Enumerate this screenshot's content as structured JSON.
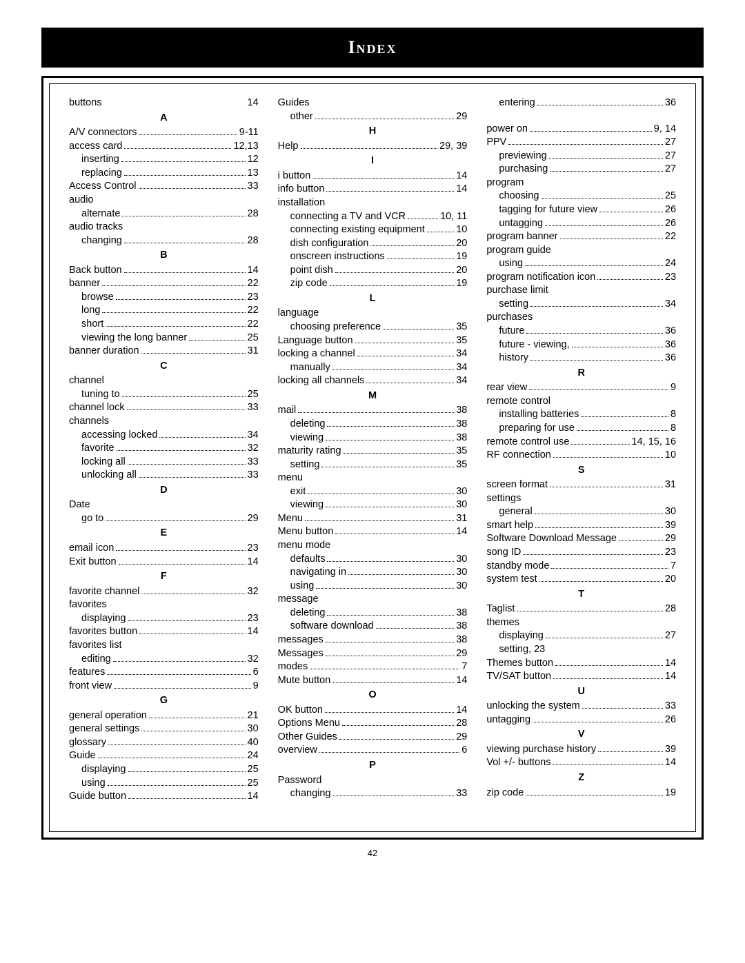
{
  "title": "Index",
  "page_number": "42",
  "columns": [
    [
      {
        "t": "line",
        "indent": 0,
        "label": "buttons",
        "page": "14",
        "nodots": true
      },
      {
        "t": "letter",
        "label": "A"
      },
      {
        "t": "line",
        "indent": 0,
        "label": "A/V connectors",
        "page": "9-11"
      },
      {
        "t": "line",
        "indent": 0,
        "label": "access card",
        "page": "12,13"
      },
      {
        "t": "line",
        "indent": 1,
        "label": "inserting",
        "page": "12"
      },
      {
        "t": "line",
        "indent": 1,
        "label": "replacing",
        "page": "13"
      },
      {
        "t": "line",
        "indent": 0,
        "label": "Access Control",
        "page": "33"
      },
      {
        "t": "header",
        "indent": 0,
        "label": "audio"
      },
      {
        "t": "line",
        "indent": 1,
        "label": "alternate",
        "page": "28"
      },
      {
        "t": "header",
        "indent": 0,
        "label": "audio tracks"
      },
      {
        "t": "line",
        "indent": 1,
        "label": "changing",
        "page": "28"
      },
      {
        "t": "letter",
        "label": "B"
      },
      {
        "t": "line",
        "indent": 0,
        "label": "Back button",
        "page": "14"
      },
      {
        "t": "line",
        "indent": 0,
        "label": "banner",
        "page": "22"
      },
      {
        "t": "line",
        "indent": 1,
        "label": "browse",
        "page": "23"
      },
      {
        "t": "line",
        "indent": 1,
        "label": "long",
        "page": "22"
      },
      {
        "t": "line",
        "indent": 1,
        "label": "short",
        "page": "22"
      },
      {
        "t": "line",
        "indent": 1,
        "label": "viewing the long banner",
        "page": "25"
      },
      {
        "t": "line",
        "indent": 0,
        "label": "banner duration",
        "page": "31"
      },
      {
        "t": "letter",
        "label": "C"
      },
      {
        "t": "header",
        "indent": 0,
        "label": "channel"
      },
      {
        "t": "line",
        "indent": 1,
        "label": "tuning to",
        "page": "25"
      },
      {
        "t": "line",
        "indent": 0,
        "label": "channel lock",
        "page": "33"
      },
      {
        "t": "header",
        "indent": 0,
        "label": "channels"
      },
      {
        "t": "line",
        "indent": 1,
        "label": "accessing locked",
        "page": "34"
      },
      {
        "t": "line",
        "indent": 1,
        "label": "favorite",
        "page": "32"
      },
      {
        "t": "line",
        "indent": 1,
        "label": "locking all",
        "page": "33"
      },
      {
        "t": "line",
        "indent": 1,
        "label": "unlocking all",
        "page": "33"
      },
      {
        "t": "letter",
        "label": "D"
      },
      {
        "t": "header",
        "indent": 0,
        "label": "Date"
      },
      {
        "t": "line",
        "indent": 1,
        "label": "go to",
        "page": "29"
      },
      {
        "t": "letter",
        "label": "E"
      },
      {
        "t": "line",
        "indent": 0,
        "label": "email icon",
        "page": "23"
      },
      {
        "t": "line",
        "indent": 0,
        "label": "Exit button",
        "page": "14"
      },
      {
        "t": "letter",
        "label": "F"
      },
      {
        "t": "line",
        "indent": 0,
        "label": "favorite channel",
        "page": "32"
      },
      {
        "t": "header",
        "indent": 0,
        "label": "favorites"
      },
      {
        "t": "line",
        "indent": 1,
        "label": "displaying",
        "page": "23"
      },
      {
        "t": "line",
        "indent": 0,
        "label": "favorites button",
        "page": "14"
      },
      {
        "t": "header",
        "indent": 0,
        "label": "favorites list"
      },
      {
        "t": "line",
        "indent": 1,
        "label": "editing",
        "page": "32"
      },
      {
        "t": "line",
        "indent": 0,
        "label": "features",
        "page": "6"
      },
      {
        "t": "line",
        "indent": 0,
        "label": "front view",
        "page": "9"
      },
      {
        "t": "letter",
        "label": "G"
      },
      {
        "t": "line",
        "indent": 0,
        "label": "general operation",
        "page": "21"
      },
      {
        "t": "line",
        "indent": 0,
        "label": "general settings",
        "page": "30"
      },
      {
        "t": "line",
        "indent": 0,
        "label": "glossary",
        "page": "40"
      },
      {
        "t": "line",
        "indent": 0,
        "label": "Guide",
        "page": "24"
      },
      {
        "t": "line",
        "indent": 1,
        "label": "displaying",
        "page": "25"
      },
      {
        "t": "line",
        "indent": 1,
        "label": "using",
        "page": "25"
      },
      {
        "t": "line",
        "indent": 0,
        "label": "Guide button",
        "page": "14"
      }
    ],
    [
      {
        "t": "header",
        "indent": 0,
        "label": "Guides"
      },
      {
        "t": "line",
        "indent": 1,
        "label": "other",
        "page": "29"
      },
      {
        "t": "letter",
        "label": "H"
      },
      {
        "t": "line",
        "indent": 0,
        "label": "Help",
        "page": "29, 39"
      },
      {
        "t": "letter",
        "label": "I"
      },
      {
        "t": "line",
        "indent": 0,
        "label": "i button",
        "page": "14"
      },
      {
        "t": "line",
        "indent": 0,
        "label": "info button",
        "page": "14"
      },
      {
        "t": "header",
        "indent": 0,
        "label": "installation"
      },
      {
        "t": "line",
        "indent": 1,
        "label": "connecting a TV and VCR",
        "page": "10, 11"
      },
      {
        "t": "line",
        "indent": 1,
        "label": "connecting existing equipment",
        "page": "10"
      },
      {
        "t": "line",
        "indent": 1,
        "label": "dish configuration",
        "page": "20"
      },
      {
        "t": "line",
        "indent": 1,
        "label": "onscreen instructions",
        "page": "19"
      },
      {
        "t": "line",
        "indent": 1,
        "label": "point dish",
        "page": "20"
      },
      {
        "t": "line",
        "indent": 1,
        "label": "zip code",
        "page": "19"
      },
      {
        "t": "letter",
        "label": "L"
      },
      {
        "t": "header",
        "indent": 0,
        "label": "language"
      },
      {
        "t": "line",
        "indent": 1,
        "label": "choosing preference",
        "page": "35"
      },
      {
        "t": "line",
        "indent": 0,
        "label": "Language button",
        "page": "35"
      },
      {
        "t": "line",
        "indent": 0,
        "label": "locking a channel",
        "page": "34"
      },
      {
        "t": "line",
        "indent": 1,
        "label": "manually",
        "page": "34"
      },
      {
        "t": "line",
        "indent": 0,
        "label": "locking all channels",
        "page": "34"
      },
      {
        "t": "letter",
        "label": "M"
      },
      {
        "t": "line",
        "indent": 0,
        "label": "mail",
        "page": "38"
      },
      {
        "t": "line",
        "indent": 1,
        "label": "deleting",
        "page": "38"
      },
      {
        "t": "line",
        "indent": 1,
        "label": "viewing",
        "page": "38"
      },
      {
        "t": "line",
        "indent": 0,
        "label": "maturity rating",
        "page": "35"
      },
      {
        "t": "line",
        "indent": 1,
        "label": "setting",
        "page": "35"
      },
      {
        "t": "header",
        "indent": 0,
        "label": "menu"
      },
      {
        "t": "line",
        "indent": 1,
        "label": "exit",
        "page": "30"
      },
      {
        "t": "line",
        "indent": 1,
        "label": "viewing",
        "page": "30"
      },
      {
        "t": "line",
        "indent": 0,
        "label": "Menu",
        "page": "31"
      },
      {
        "t": "line",
        "indent": 0,
        "label": "Menu button",
        "page": "14"
      },
      {
        "t": "header",
        "indent": 0,
        "label": "menu mode"
      },
      {
        "t": "line",
        "indent": 1,
        "label": "defaults",
        "page": "30"
      },
      {
        "t": "line",
        "indent": 1,
        "label": "navigating in",
        "page": "30"
      },
      {
        "t": "line",
        "indent": 1,
        "label": "using",
        "page": "30"
      },
      {
        "t": "header",
        "indent": 0,
        "label": "message"
      },
      {
        "t": "line",
        "indent": 1,
        "label": "deleting",
        "page": "38"
      },
      {
        "t": "line",
        "indent": 1,
        "label": "software download",
        "page": "38"
      },
      {
        "t": "line",
        "indent": 0,
        "label": "messages",
        "page": "38"
      },
      {
        "t": "line",
        "indent": 0,
        "label": "Messages",
        "page": "29"
      },
      {
        "t": "line",
        "indent": 0,
        "label": "modes",
        "page": "7"
      },
      {
        "t": "line",
        "indent": 0,
        "label": "Mute button",
        "page": "14"
      },
      {
        "t": "letter",
        "label": "O"
      },
      {
        "t": "line",
        "indent": 0,
        "label": "OK button",
        "page": "14"
      },
      {
        "t": "line",
        "indent": 0,
        "label": "Options Menu",
        "page": "28"
      },
      {
        "t": "line",
        "indent": 0,
        "label": "Other Guides",
        "page": "29"
      },
      {
        "t": "line",
        "indent": 0,
        "label": "overview",
        "page": "6"
      },
      {
        "t": "letter",
        "label": "P"
      },
      {
        "t": "header",
        "indent": 0,
        "label": "Password"
      },
      {
        "t": "line",
        "indent": 1,
        "label": "changing",
        "page": "33"
      }
    ],
    [
      {
        "t": "line",
        "indent": 1,
        "label": "entering",
        "page": "36"
      },
      {
        "t": "spacer"
      },
      {
        "t": "line",
        "indent": 0,
        "label": "power on",
        "page": "9, 14"
      },
      {
        "t": "line",
        "indent": 0,
        "label": "PPV",
        "page": "27"
      },
      {
        "t": "line",
        "indent": 1,
        "label": "previewing",
        "page": "27"
      },
      {
        "t": "line",
        "indent": 1,
        "label": "purchasing",
        "page": "27"
      },
      {
        "t": "header",
        "indent": 0,
        "label": "program"
      },
      {
        "t": "line",
        "indent": 1,
        "label": "choosing",
        "page": "25"
      },
      {
        "t": "line",
        "indent": 1,
        "label": "tagging for future view",
        "page": "26"
      },
      {
        "t": "line",
        "indent": 1,
        "label": "untagging",
        "page": "26"
      },
      {
        "t": "line",
        "indent": 0,
        "label": "program banner",
        "page": "22"
      },
      {
        "t": "header",
        "indent": 0,
        "label": "program guide"
      },
      {
        "t": "line",
        "indent": 1,
        "label": "using",
        "page": "24"
      },
      {
        "t": "line",
        "indent": 0,
        "label": "program notification icon",
        "page": "23"
      },
      {
        "t": "header",
        "indent": 0,
        "label": "purchase limit"
      },
      {
        "t": "line",
        "indent": 1,
        "label": "setting",
        "page": "34"
      },
      {
        "t": "header",
        "indent": 0,
        "label": "purchases"
      },
      {
        "t": "line",
        "indent": 1,
        "label": "future",
        "page": "36"
      },
      {
        "t": "line",
        "indent": 1,
        "label": "future - viewing,",
        "page": "36"
      },
      {
        "t": "line",
        "indent": 1,
        "label": "history",
        "page": "36"
      },
      {
        "t": "letter",
        "label": "R"
      },
      {
        "t": "line",
        "indent": 0,
        "label": "rear view",
        "page": "9"
      },
      {
        "t": "header",
        "indent": 0,
        "label": "remote control"
      },
      {
        "t": "line",
        "indent": 1,
        "label": "installing batteries",
        "page": "8"
      },
      {
        "t": "line",
        "indent": 1,
        "label": "preparing for use",
        "page": "8"
      },
      {
        "t": "line",
        "indent": 0,
        "label": "remote control use",
        "page": "14, 15, 16"
      },
      {
        "t": "line",
        "indent": 0,
        "label": "RF connection",
        "page": "10"
      },
      {
        "t": "letter",
        "label": "S"
      },
      {
        "t": "line",
        "indent": 0,
        "label": "screen format",
        "page": "31"
      },
      {
        "t": "header",
        "indent": 0,
        "label": "settings"
      },
      {
        "t": "line",
        "indent": 1,
        "label": "general",
        "page": "30"
      },
      {
        "t": "line",
        "indent": 0,
        "label": "smart help",
        "page": "39"
      },
      {
        "t": "line",
        "indent": 0,
        "label": "Software Download Message",
        "page": "29"
      },
      {
        "t": "line",
        "indent": 0,
        "label": "song ID",
        "page": "23"
      },
      {
        "t": "line",
        "indent": 0,
        "label": "standby mode",
        "page": "7"
      },
      {
        "t": "line",
        "indent": 0,
        "label": "system test",
        "page": "20"
      },
      {
        "t": "letter",
        "label": "T"
      },
      {
        "t": "line",
        "indent": 0,
        "label": "Taglist",
        "page": "28"
      },
      {
        "t": "header",
        "indent": 0,
        "label": "themes"
      },
      {
        "t": "line",
        "indent": 1,
        "label": "displaying",
        "page": "27"
      },
      {
        "t": "header",
        "indent": 1,
        "label": "setting, 23"
      },
      {
        "t": "line",
        "indent": 0,
        "label": "Themes button",
        "page": "14"
      },
      {
        "t": "line",
        "indent": 0,
        "label": "TV/SAT button",
        "page": "14"
      },
      {
        "t": "letter",
        "label": "U"
      },
      {
        "t": "line",
        "indent": 0,
        "label": "unlocking the system",
        "page": "33"
      },
      {
        "t": "line",
        "indent": 0,
        "label": "untagging",
        "page": "26"
      },
      {
        "t": "letter",
        "label": "V"
      },
      {
        "t": "line",
        "indent": 0,
        "label": "viewing purchase history",
        "page": "39"
      },
      {
        "t": "line",
        "indent": 0,
        "label": "Vol +/- buttons",
        "page": "14"
      },
      {
        "t": "letter",
        "label": "Z"
      },
      {
        "t": "line",
        "indent": 0,
        "label": "zip code",
        "page": "19"
      }
    ]
  ]
}
